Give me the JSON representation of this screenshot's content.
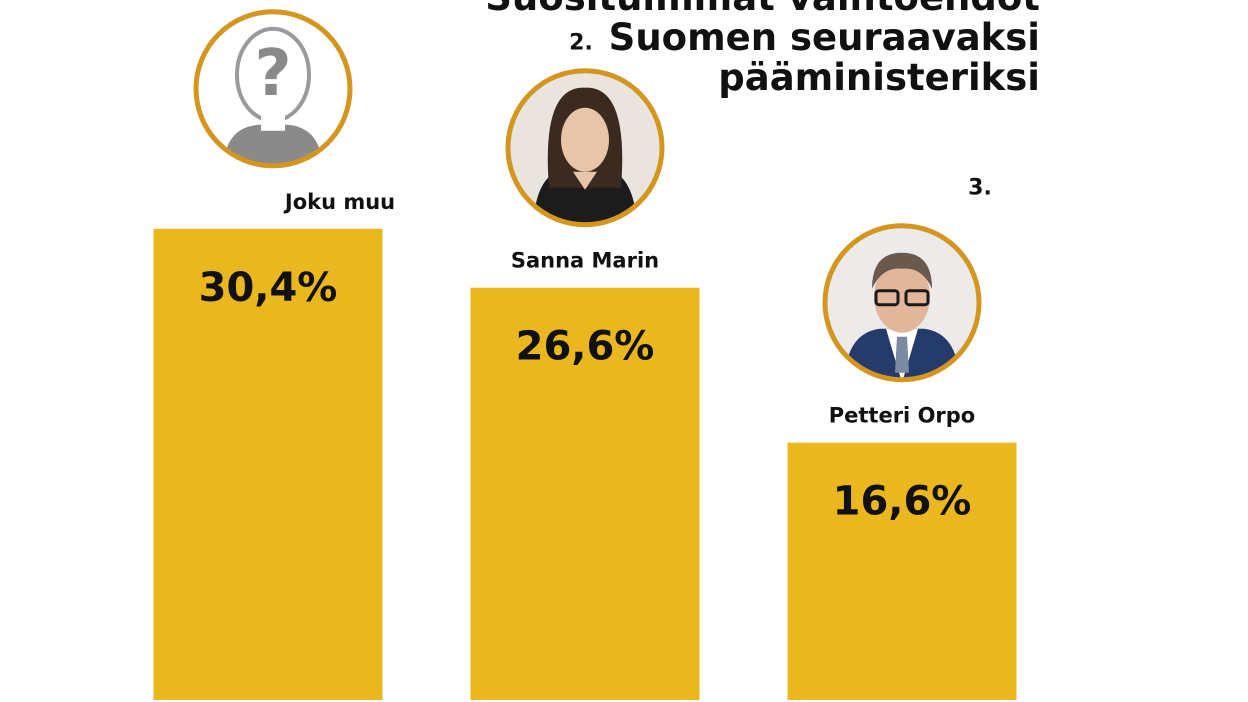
{
  "title_lines": [
    "Suosituimmat vaihtoehdot",
    "Suomen seuraavaksi",
    "pääministeriksi"
  ],
  "colors": {
    "bar": "#ebb71f",
    "ring": "#d4961f",
    "text": "#111111"
  },
  "chart_data": {
    "type": "bar",
    "title": "Suosituimmat vaihtoehdot Suomen seuraavaksi pääministeriksi",
    "categories": [
      "Joku muu",
      "Sanna Marin",
      "Petteri Orpo"
    ],
    "ranks": [
      "",
      "2.",
      "3."
    ],
    "values": [
      30.4,
      26.6,
      16.6
    ],
    "value_labels": [
      "30,4%",
      "26,6%",
      "16,6%"
    ],
    "unit": "%",
    "icons": [
      "unknown-person-icon",
      "sanna-marin-portrait",
      "petteri-orpo-portrait"
    ],
    "xlabel": "",
    "ylabel": "",
    "grid": false
  }
}
